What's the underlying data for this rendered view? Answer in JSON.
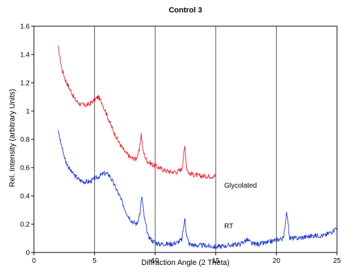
{
  "chart_data": {
    "type": "line",
    "title": "Control 3",
    "xlabel": "Diffraction Angle (2 Theta)",
    "ylabel": "Rel. Intensity (arbitrary Units)",
    "xlim": [
      0,
      25
    ],
    "ylim": [
      0,
      1.6
    ],
    "x_ticks": [
      "0",
      "5",
      "10",
      "15",
      "20",
      "25"
    ],
    "y_ticks": [
      "0",
      "0.2",
      "0.4",
      "0.6",
      "0.8",
      "1",
      "1.2",
      "1.4",
      "1.6"
    ],
    "grid": "vertical lines at 5, 10, 15, 20",
    "series": [
      {
        "name": "Glycolated",
        "color": "#e8202a",
        "x": [
          2.0,
          2.3,
          2.6,
          3.0,
          3.4,
          3.8,
          4.2,
          4.6,
          5.0,
          5.3,
          5.6,
          5.9,
          6.2,
          6.6,
          7.0,
          7.5,
          8.0,
          8.4,
          8.7,
          8.85,
          9.0,
          9.3,
          9.8,
          10.3,
          10.8,
          11.3,
          11.8,
          12.2,
          12.45,
          12.6,
          12.8,
          13.2,
          13.8,
          14.4,
          15.0
        ],
        "y": [
          1.45,
          1.3,
          1.22,
          1.15,
          1.08,
          1.05,
          1.04,
          1.05,
          1.08,
          1.1,
          1.06,
          1.0,
          0.93,
          0.85,
          0.78,
          0.71,
          0.67,
          0.66,
          0.72,
          0.84,
          0.72,
          0.65,
          0.62,
          0.6,
          0.58,
          0.57,
          0.57,
          0.59,
          0.75,
          0.6,
          0.56,
          0.55,
          0.54,
          0.54,
          0.54
        ]
      },
      {
        "name": "RT",
        "color": "#1c3bc8",
        "x": [
          2.0,
          2.3,
          2.6,
          3.0,
          3.4,
          3.8,
          4.2,
          4.6,
          5.0,
          5.4,
          5.8,
          6.2,
          6.5,
          6.9,
          7.3,
          7.7,
          8.1,
          8.5,
          8.75,
          8.9,
          9.1,
          9.4,
          9.8,
          10.3,
          10.8,
          11.3,
          11.8,
          12.2,
          12.45,
          12.6,
          12.8,
          13.3,
          14.0,
          15.0,
          16.0,
          17.0,
          17.6,
          18.0,
          18.6,
          19.3,
          20.0,
          20.6,
          20.85,
          21.1,
          21.6,
          22.4,
          23.2,
          24.0,
          24.6,
          25.0
        ],
        "y": [
          0.86,
          0.75,
          0.65,
          0.58,
          0.54,
          0.51,
          0.5,
          0.5,
          0.52,
          0.54,
          0.56,
          0.55,
          0.5,
          0.43,
          0.35,
          0.27,
          0.22,
          0.2,
          0.28,
          0.4,
          0.25,
          0.12,
          0.08,
          0.06,
          0.06,
          0.06,
          0.07,
          0.09,
          0.24,
          0.12,
          0.06,
          0.05,
          0.05,
          0.04,
          0.05,
          0.06,
          0.09,
          0.06,
          0.06,
          0.07,
          0.09,
          0.1,
          0.3,
          0.1,
          0.1,
          0.11,
          0.12,
          0.12,
          0.15,
          0.18
        ]
      }
    ],
    "annotations": [
      "Glycolated",
      "RT"
    ]
  }
}
